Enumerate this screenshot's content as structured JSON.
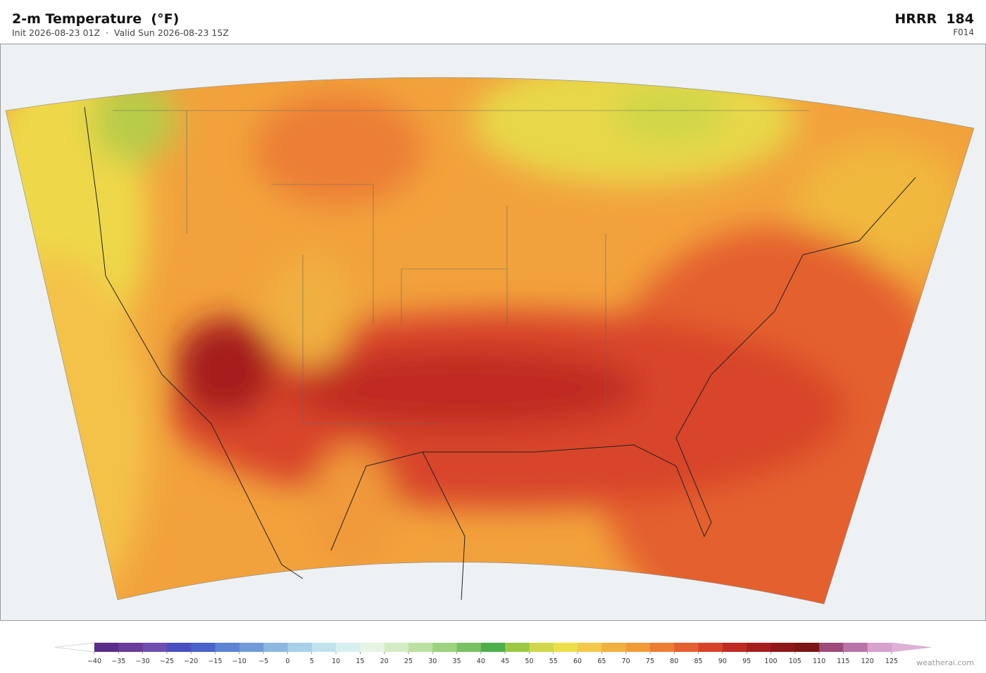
{
  "header": {
    "title": "2-m Temperature  (°F)",
    "subtitle": "Init 2026-08-23 01Z  ·  Valid Sun 2026-08-23 15Z",
    "model": "HRRR  184",
    "forecast_hour": "F014"
  },
  "colorbar": {
    "ticks": [
      {
        "value": -40,
        "label": "−40"
      },
      {
        "value": -35,
        "label": "−35"
      },
      {
        "value": -30,
        "label": "−30"
      },
      {
        "value": -25,
        "label": "−25"
      },
      {
        "value": -20,
        "label": "−20"
      },
      {
        "value": -15,
        "label": "−15"
      },
      {
        "value": -10,
        "label": "−10"
      },
      {
        "value": -5,
        "label": "−5"
      },
      0,
      5,
      10,
      15,
      20,
      25,
      30,
      35,
      40,
      45,
      50,
      55,
      60,
      65,
      70,
      75,
      80,
      85,
      90,
      95,
      100,
      105,
      110,
      115,
      120,
      125
    ],
    "colors": [
      "#5a2d8c",
      "#6a3d9a",
      "#6e4fb0",
      "#4a4fc0",
      "#4a63c8",
      "#5b84d2",
      "#6f9bd8",
      "#8cb8e0",
      "#a8d0e8",
      "#c0e2ee",
      "#d8eff0",
      "#e6f5e6",
      "#d4ecc4",
      "#bde0a0",
      "#9cd37e",
      "#78c262",
      "#4caf4a",
      "#9cc844",
      "#cfd84a",
      "#ece04a",
      "#f4c84a",
      "#f2b040",
      "#f09a3a",
      "#ec7e34",
      "#e4602e",
      "#d84228",
      "#c02a22",
      "#a51e1e",
      "#8c1818",
      "#7a1616",
      "#9c4a7a",
      "#b874a8",
      "#d8a0cc"
    ],
    "under_color": "#ffffff",
    "over_color": "#e0b0d8"
  },
  "watermark": "weatherai.com"
}
